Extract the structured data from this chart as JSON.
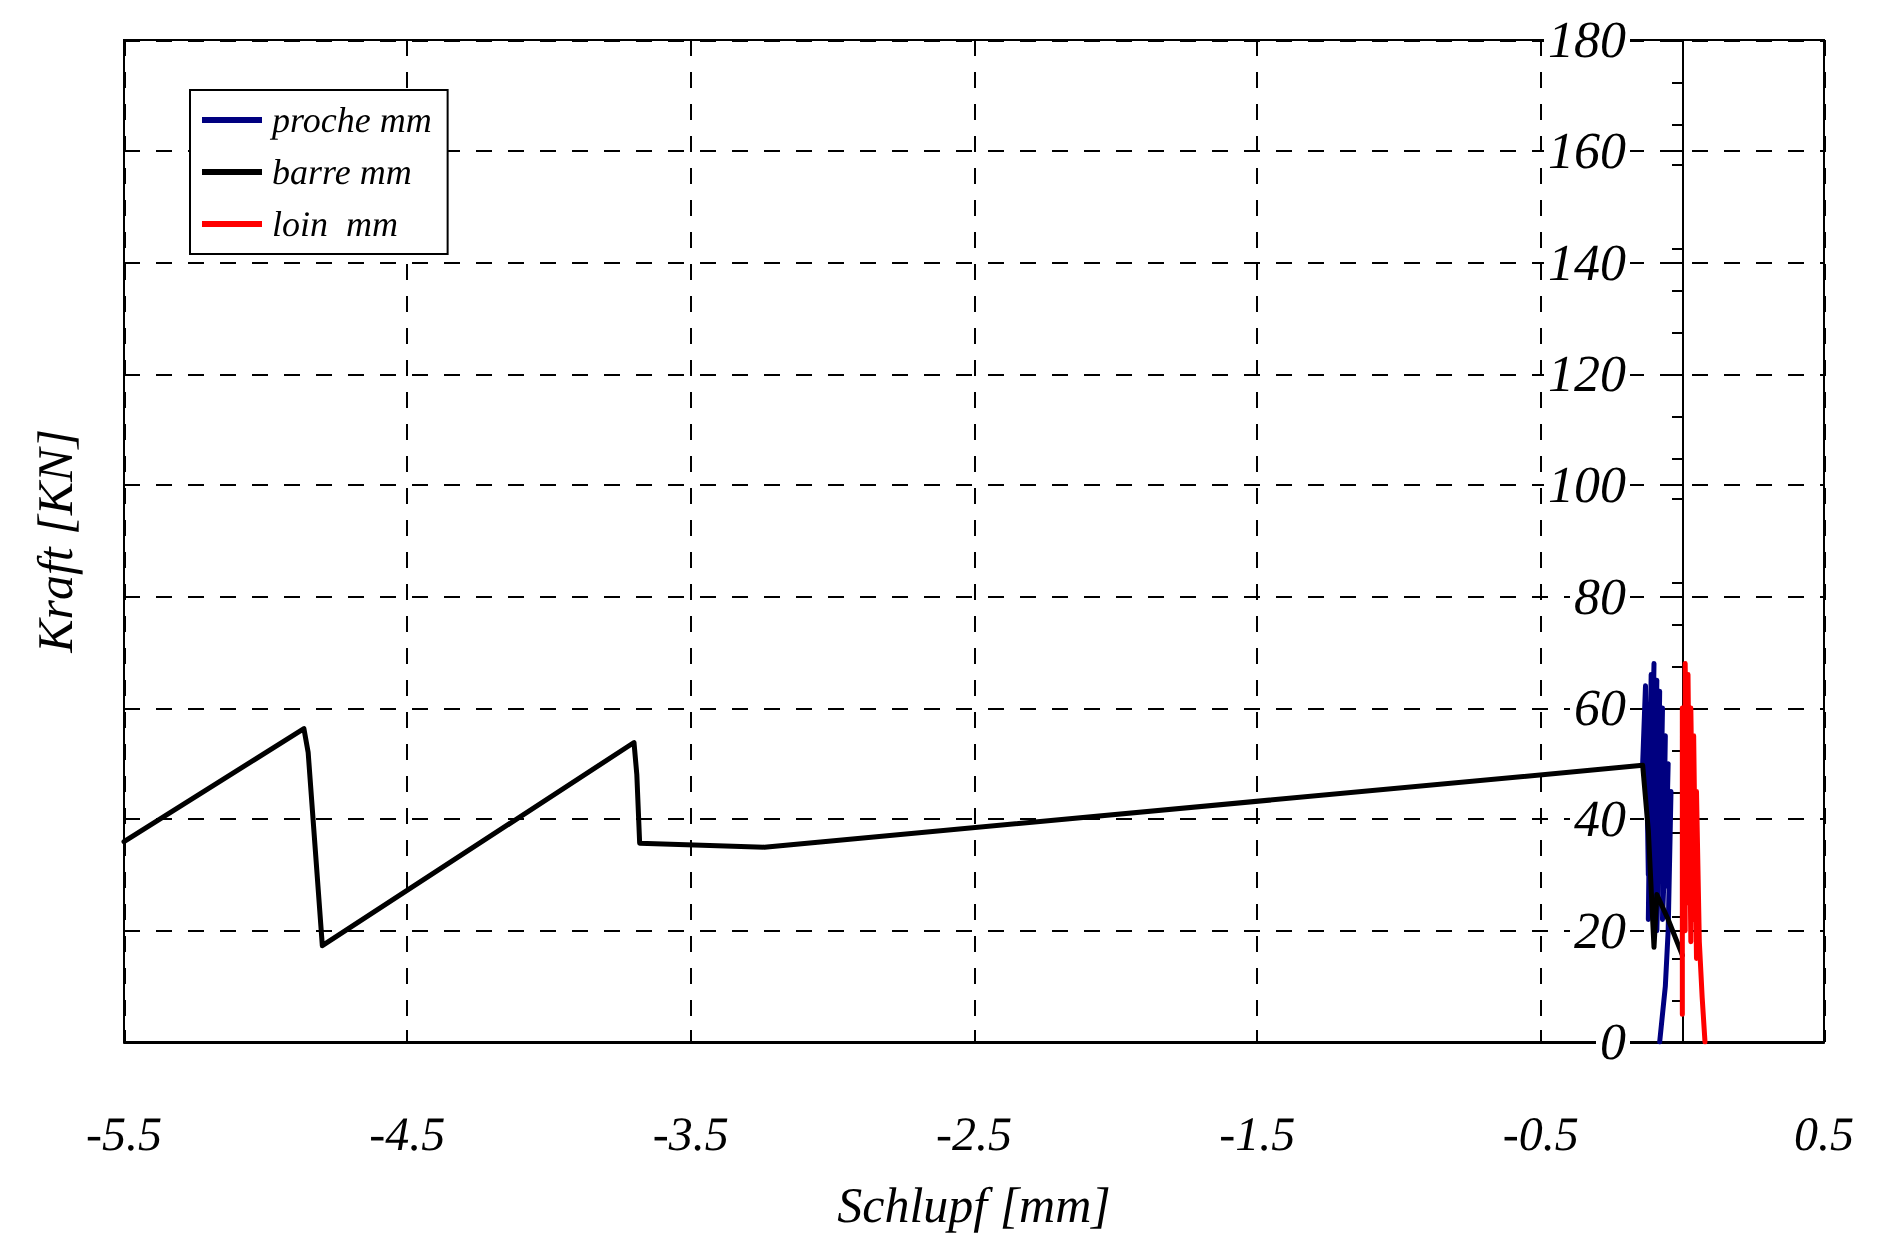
{
  "chart_data": {
    "type": "line",
    "xlabel": "Schlupf [mm]",
    "ylabel": "Kraft [KN]",
    "xlim": [
      -5.5,
      0.5
    ],
    "xticks": [
      -5.5,
      -4.5,
      -3.5,
      -2.5,
      -1.5,
      -0.5,
      0.5
    ],
    "ylim": [
      0,
      180
    ],
    "yticks": [
      0,
      20,
      40,
      60,
      80,
      100,
      120,
      140,
      160,
      180
    ],
    "grid": true,
    "legend": "top left",
    "marker": "none",
    "line_style": "solid",
    "series": [
      {
        "name": "proche mm",
        "color": "#000080",
        "x": [
          -0.14,
          -0.13,
          -0.12,
          -0.11,
          -0.12,
          -0.1,
          -0.11,
          -0.09,
          -0.1,
          -0.08,
          -0.09,
          -0.07,
          -0.08,
          -0.06,
          -0.07,
          -0.05,
          -0.06,
          -0.04,
          -0.05,
          -0.06,
          -0.08
        ],
        "values": [
          50,
          64,
          30,
          66,
          22,
          68,
          35,
          65,
          25,
          63,
          20,
          60,
          30,
          55,
          22,
          50,
          28,
          45,
          20,
          10,
          0
        ]
      },
      {
        "name": "barre mm",
        "color": "#000000",
        "x": [
          -5.5,
          -4.865,
          -4.85,
          -4.8,
          -3.7,
          -3.69,
          -3.68,
          -3.24,
          -0.14,
          -0.12,
          -0.1,
          -0.09,
          -0.05,
          0.0
        ],
        "values": [
          36,
          56.3,
          52,
          17.3,
          53.8,
          48,
          35.7,
          35,
          49.7,
          38,
          17,
          26.5,
          22,
          15.6
        ]
      },
      {
        "name": "loin  mm",
        "color": "#ff0000",
        "x": [
          0.0,
          0.0,
          0.01,
          0.01,
          0.02,
          0.02,
          0.03,
          0.03,
          0.04,
          0.04,
          0.05,
          0.05,
          0.06,
          0.07,
          0.08
        ],
        "values": [
          5,
          60,
          20,
          68,
          25,
          66,
          18,
          60,
          22,
          55,
          15,
          45,
          18,
          8,
          0
        ]
      }
    ]
  }
}
